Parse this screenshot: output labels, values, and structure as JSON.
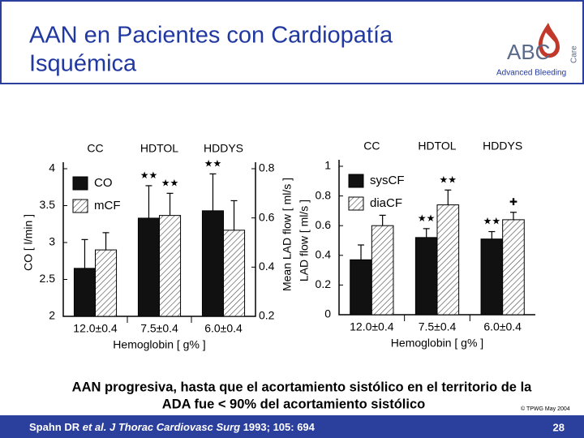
{
  "slide": {
    "title_lines": [
      "AAN en Pacientes con Cardiopatía",
      "Isquémica"
    ],
    "logo": {
      "main": "ABC",
      "side": "Care",
      "sub": "Advanced Bleeding"
    },
    "body_lines": [
      "AAN progresiva, hasta que el acortamiento sistólico en el territorio de la",
      "ADA fue < 90% del acortamiento sistólico"
    ],
    "copyright": "© TPWG May 2004",
    "citation": {
      "authors": "Spahn DR ",
      "etal": "et al. J Thorac Cardiovasc Surg",
      "rest": " 1993; 105: 694"
    },
    "page": 28
  },
  "chart_data": [
    {
      "type": "bar",
      "top_labels": [
        "CC",
        "HDTOL",
        "HDDYS"
      ],
      "categories": [
        "12.0±0.4",
        "7.5±0.4",
        "6.0±0.4"
      ],
      "xlabel": "Hemoglobin  [ g% ]",
      "ylabel": "CO  [ l/min ]",
      "y2label": "Mean LAD flow  [ ml/s ]",
      "ylim": [
        2,
        4
      ],
      "yticks": [
        2,
        2.5,
        3,
        3.5,
        4
      ],
      "y2lim": [
        0.2,
        0.8
      ],
      "y2ticks": [
        0.2,
        0.4,
        0.6,
        0.8
      ],
      "legend": "upper left",
      "series": [
        {
          "name": "CO",
          "color": "#111111",
          "values": [
            2.65,
            3.33,
            3.43
          ],
          "errors": [
            0.39,
            0.44,
            0.5
          ],
          "significance": [
            null,
            "★★",
            "★★"
          ]
        },
        {
          "name": "mCF",
          "color": "hatch",
          "axis": "y2",
          "values": [
            0.47,
            0.61,
            0.55
          ],
          "errors": [
            0.07,
            0.09,
            0.12
          ],
          "significance": [
            null,
            "★★",
            null
          ]
        }
      ]
    },
    {
      "type": "bar",
      "top_labels": [
        "CC",
        "HDTOL",
        "HDDYS"
      ],
      "categories": [
        "12.0±0.4",
        "7.5±0.4",
        "6.0±0.4"
      ],
      "xlabel": "Hemoglobin  [ g% ]",
      "ylabel": "LAD flow  [ ml/s ]",
      "ylim": [
        0,
        1
      ],
      "yticks": [
        0,
        0.2,
        0.4,
        0.6,
        0.8,
        1
      ],
      "legend": "upper left",
      "series": [
        {
          "name": "sysCF",
          "color": "#111111",
          "values": [
            0.37,
            0.52,
            0.51
          ],
          "errors": [
            0.1,
            0.06,
            0.05
          ],
          "significance": [
            null,
            "★★",
            "★★"
          ]
        },
        {
          "name": "diaCF",
          "color": "hatch",
          "values": [
            0.6,
            0.74,
            0.64
          ],
          "errors": [
            0.07,
            0.1,
            0.05
          ],
          "significance": [
            null,
            "★★",
            "✚"
          ]
        }
      ]
    }
  ]
}
